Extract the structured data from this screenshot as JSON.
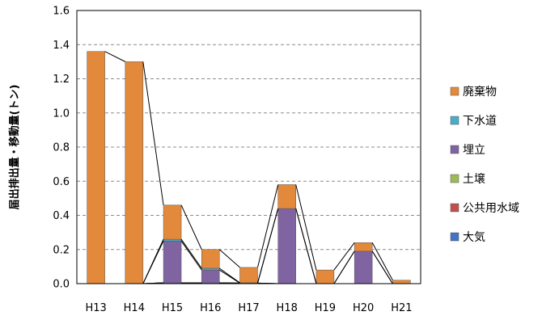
{
  "chart_data": {
    "type": "bar",
    "stacked": true,
    "categories": [
      "H13",
      "H14",
      "H15",
      "H16",
      "H17",
      "H18",
      "H19",
      "H20",
      "H21"
    ],
    "series": [
      {
        "name": "大気",
        "color": "#4472C4",
        "values": [
          0,
          0,
          0.005,
          0.005,
          0.003,
          0,
          0,
          0,
          0
        ]
      },
      {
        "name": "公共用水域",
        "color": "#C0504D",
        "values": [
          0,
          0,
          0,
          0,
          0,
          0,
          0,
          0,
          0
        ]
      },
      {
        "name": "土壌",
        "color": "#9BBB59",
        "values": [
          0,
          0,
          0,
          0,
          0,
          0,
          0,
          0,
          0
        ]
      },
      {
        "name": "埋立",
        "color": "#8064A2",
        "values": [
          0,
          0,
          0.245,
          0.075,
          0,
          0.44,
          0,
          0.19,
          0
        ]
      },
      {
        "name": "下水道",
        "color": "#4BACC6",
        "values": [
          0,
          0,
          0.01,
          0.01,
          0.002,
          0,
          0,
          0,
          0
        ]
      },
      {
        "name": "廃棄物",
        "color": "#E2893B",
        "values": [
          1.36,
          1.3,
          0.2,
          0.11,
          0.09,
          0.14,
          0.08,
          0.05,
          0.02
        ]
      }
    ],
    "legend_order": [
      "廃棄物",
      "下水道",
      "埋立",
      "土壌",
      "公共用水域",
      "大気"
    ],
    "ylabel": "届出排出量・移動量(トン)",
    "ylim": [
      0,
      1.6
    ],
    "yticks": [
      "0.0",
      "0.2",
      "0.4",
      "0.6",
      "0.8",
      "1.0",
      "1.2",
      "1.4",
      "1.6"
    ],
    "grid": true,
    "series_lines": true,
    "legend_position": "right"
  }
}
